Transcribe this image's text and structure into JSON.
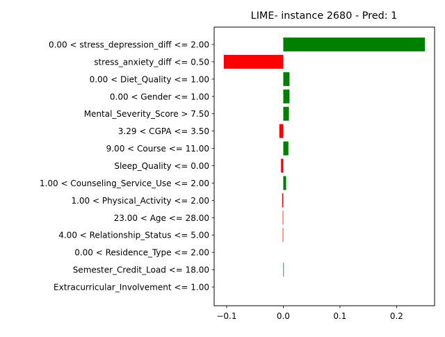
{
  "chart_data": {
    "type": "bar",
    "orientation": "horizontal",
    "title": "LIME- instance 2680 - Pred: 1",
    "xlabel": "",
    "ylabel": "",
    "xlim": [
      -0.122,
      0.267
    ],
    "xticks": [
      -0.1,
      0.0,
      0.1,
      0.2
    ],
    "xtick_labels": [
      "−0.1",
      "0.0",
      "0.1",
      "0.2"
    ],
    "grid": false,
    "legend": "none",
    "positive_color": "#008000",
    "negative_color": "#ff0000",
    "categories": [
      "0.00 < stress_depression_diff <= 2.00",
      "stress_anxiety_diff <= 0.50",
      "0.00 < Diet_Quality <= 1.00",
      "0.00 < Gender <= 1.00",
      "Mental_Severity_Score > 7.50",
      "3.29 < CGPA <= 3.50",
      "9.00 < Course <= 11.00",
      "Sleep_Quality <= 0.00",
      "1.00 < Counseling_Service_Use <= 2.00",
      "1.00 < Physical_Activity <= 2.00",
      "23.00 < Age <= 28.00",
      "4.00 < Relationship_Status <= 5.00",
      "0.00 < Residence_Type <= 2.00",
      "Semester_Credit_Load <= 18.00",
      "Extracurricular_Involvement <= 1.00"
    ],
    "values": [
      0.25,
      -0.105,
      0.011,
      0.011,
      0.01,
      -0.007,
      0.009,
      -0.004,
      0.005,
      -0.002,
      -0.001,
      -0.001,
      0.0,
      0.001,
      0.0
    ]
  }
}
